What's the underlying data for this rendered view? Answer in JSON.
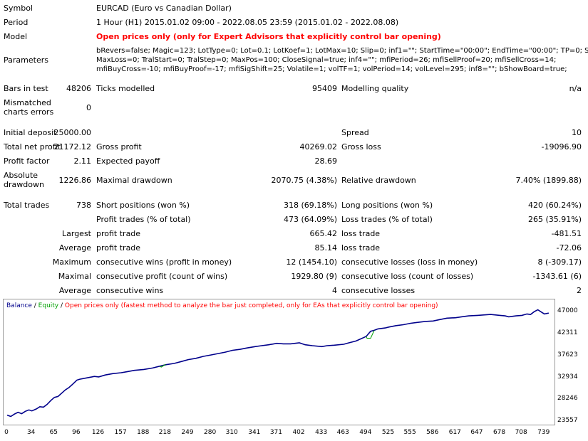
{
  "summary": {
    "symbol_label": "Symbol",
    "symbol_value": "EURCAD (Euro vs Canadian Dollar)",
    "period_label": "Period",
    "period_value": "1 Hour (H1) 2015.01.02 09:00 - 2022.08.05 23:59 (2015.01.02 - 2022.08.08)",
    "model_label": "Model",
    "model_value": "Open prices only (only for Expert Advisors that explicitly control bar opening)",
    "parameters_label": "Parameters",
    "parameters_line1": "bRevers=false; Magic=123; LotType=0; Lot=0.1; LotKoef=1; LotMax=10; Slip=0; inf1=\"\"; StartTime=\"00:00\"; EndTime=\"00:00\"; TP=0; SL=0;",
    "parameters_line2": "MaxLoss=0; TralStart=0; TralStep=0; MaxPos=100; CloseSignal=true; inf4=\"\"; mfiPeriod=26; mfiSellProof=20; mfiSellCross=14;",
    "parameters_line3": "mfiBuyCross=-10; mfiBuyProof=-17; mfiSigShift=25; Volatile=1; volTF=1; volPeriod=14; volLevel=295; inf8=\"\"; bShowBoard=true;"
  },
  "stats": {
    "bars_label": "Bars in test",
    "bars_value": "48206",
    "ticks_label": "Ticks modelled",
    "ticks_value": "95409",
    "quality_label": "Modelling quality",
    "quality_value": "n/a",
    "mismatch_label1": "Mismatched",
    "mismatch_label2": "charts errors",
    "mismatch_value": "0",
    "deposit_label": "Initial deposit",
    "deposit_value": "25000.00",
    "spread_label": "Spread",
    "spread_value": "10",
    "netprofit_label": "Total net profit",
    "netprofit_value": "21172.12",
    "grossprofit_label": "Gross profit",
    "grossprofit_value": "40269.02",
    "grossloss_label": "Gross loss",
    "grossloss_value": "-19096.90",
    "pf_label": "Profit factor",
    "pf_value": "2.11",
    "expected_label": "Expected payoff",
    "expected_value": "28.69",
    "absdd_label1": "Absolute",
    "absdd_label2": "drawdown",
    "absdd_value": "1226.86",
    "maxdd_label": "Maximal drawdown",
    "maxdd_value": "2070.75 (4.38%)",
    "reldd_label": "Relative drawdown",
    "reldd_value": "7.40% (1899.88)",
    "trades_label": "Total trades",
    "trades_value": "738",
    "short_label": "Short positions (won %)",
    "short_value": "318 (69.18%)",
    "long_label": "Long positions (won %)",
    "long_value": "420 (60.24%)",
    "ptrades_label": "Profit trades (% of total)",
    "ptrades_value": "473 (64.09%)",
    "ltrades_label": "Loss trades (% of total)",
    "ltrades_value": "265 (35.91%)",
    "largest_label": "Largest",
    "largest_p_label": "profit trade",
    "largest_p_value": "665.42",
    "largest_l_label": "loss trade",
    "largest_l_value": "-481.51",
    "average_label": "Average",
    "average_p_label": "profit trade",
    "average_p_value": "85.14",
    "average_l_label": "loss trade",
    "average_l_value": "-72.06",
    "maximum_label": "Maximum",
    "maxwins_label": "consecutive wins (profit in money)",
    "maxwins_value": "12 (1454.10)",
    "maxlosses_label": "consecutive losses (loss in money)",
    "maxlosses_value": "8 (-309.17)",
    "maximal_label": "Maximal",
    "maxprofit_label": "consecutive profit (count of wins)",
    "maxprofit_value": "1929.80 (9)",
    "maxloss_label": "consecutive loss (count of losses)",
    "maxloss_value": "-1343.61 (6)",
    "avg2_label": "Average",
    "avgwins_label": "consecutive wins",
    "avgwins_value": "4",
    "avglosses_label": "consecutive losses",
    "avglosses_value": "2"
  },
  "chart_data": {
    "type": "line",
    "legend_balance": "Balance",
    "legend_sep1": " / ",
    "legend_equity": "Equity",
    "legend_sep2": " / ",
    "legend_note": "Open prices only (fastest method to analyze the bar just completed, only for EAs that explicitly control bar opening)",
    "colors": {
      "balance": "#00008b",
      "equity": "#00a000",
      "note": "#ff0000"
    },
    "ylim": [
      23557,
      48600
    ],
    "y_ticks": [
      "47000",
      "42311",
      "37623",
      "32934",
      "28246",
      "23557"
    ],
    "y_tick_values": [
      47000,
      42311,
      37623,
      32934,
      28246,
      23557
    ],
    "x_ticks": [
      "0",
      "34",
      "65",
      "96",
      "126",
      "157",
      "188",
      "218",
      "249",
      "280",
      "310",
      "341",
      "371",
      "402",
      "433",
      "463",
      "494",
      "525",
      "555",
      "586",
      "617",
      "647",
      "678",
      "708",
      "739"
    ],
    "xlim": [
      0,
      750
    ],
    "balance": [
      [
        0,
        25000
      ],
      [
        5,
        24700
      ],
      [
        10,
        25200
      ],
      [
        15,
        25600
      ],
      [
        20,
        25300
      ],
      [
        25,
        25800
      ],
      [
        30,
        26100
      ],
      [
        34,
        25900
      ],
      [
        40,
        26300
      ],
      [
        45,
        26800
      ],
      [
        50,
        26700
      ],
      [
        55,
        27300
      ],
      [
        60,
        28100
      ],
      [
        65,
        28800
      ],
      [
        70,
        29000
      ],
      [
        75,
        29700
      ],
      [
        80,
        30400
      ],
      [
        85,
        30900
      ],
      [
        90,
        31600
      ],
      [
        96,
        32500
      ],
      [
        100,
        32700
      ],
      [
        110,
        33000
      ],
      [
        120,
        33300
      ],
      [
        126,
        33200
      ],
      [
        135,
        33600
      ],
      [
        145,
        33900
      ],
      [
        157,
        34100
      ],
      [
        165,
        34300
      ],
      [
        175,
        34600
      ],
      [
        188,
        34800
      ],
      [
        200,
        35100
      ],
      [
        210,
        35500
      ],
      [
        218,
        35800
      ],
      [
        230,
        36100
      ],
      [
        240,
        36500
      ],
      [
        249,
        36900
      ],
      [
        260,
        37200
      ],
      [
        270,
        37600
      ],
      [
        280,
        37900
      ],
      [
        290,
        38200
      ],
      [
        300,
        38500
      ],
      [
        310,
        38900
      ],
      [
        320,
        39100
      ],
      [
        330,
        39400
      ],
      [
        341,
        39700
      ],
      [
        350,
        39900
      ],
      [
        360,
        40100
      ],
      [
        371,
        40400
      ],
      [
        380,
        40300
      ],
      [
        390,
        40300
      ],
      [
        402,
        40500
      ],
      [
        410,
        40100
      ],
      [
        420,
        39900
      ],
      [
        433,
        39700
      ],
      [
        440,
        39900
      ],
      [
        450,
        40000
      ],
      [
        463,
        40200
      ],
      [
        470,
        40500
      ],
      [
        480,
        40900
      ],
      [
        490,
        41600
      ],
      [
        494,
        41900
      ],
      [
        500,
        43000
      ],
      [
        505,
        43200
      ],
      [
        510,
        43500
      ],
      [
        520,
        43700
      ],
      [
        525,
        43900
      ],
      [
        535,
        44200
      ],
      [
        545,
        44400
      ],
      [
        555,
        44700
      ],
      [
        565,
        44900
      ],
      [
        575,
        45100
      ],
      [
        586,
        45200
      ],
      [
        595,
        45500
      ],
      [
        605,
        45800
      ],
      [
        617,
        45900
      ],
      [
        625,
        46100
      ],
      [
        635,
        46300
      ],
      [
        647,
        46400
      ],
      [
        655,
        46500
      ],
      [
        665,
        46600
      ],
      [
        678,
        46400
      ],
      [
        685,
        46300
      ],
      [
        690,
        46100
      ],
      [
        700,
        46300
      ],
      [
        708,
        46400
      ],
      [
        715,
        46700
      ],
      [
        720,
        46600
      ],
      [
        725,
        47200
      ],
      [
        730,
        47600
      ],
      [
        735,
        47100
      ],
      [
        739,
        46700
      ],
      [
        745,
        46900
      ]
    ],
    "equity": [
      [
        210,
        35500
      ],
      [
        212,
        35300
      ],
      [
        218,
        35900
      ],
      [
        494,
        41900
      ],
      [
        495,
        41500
      ],
      [
        500,
        41500
      ],
      [
        505,
        43200
      ]
    ]
  }
}
